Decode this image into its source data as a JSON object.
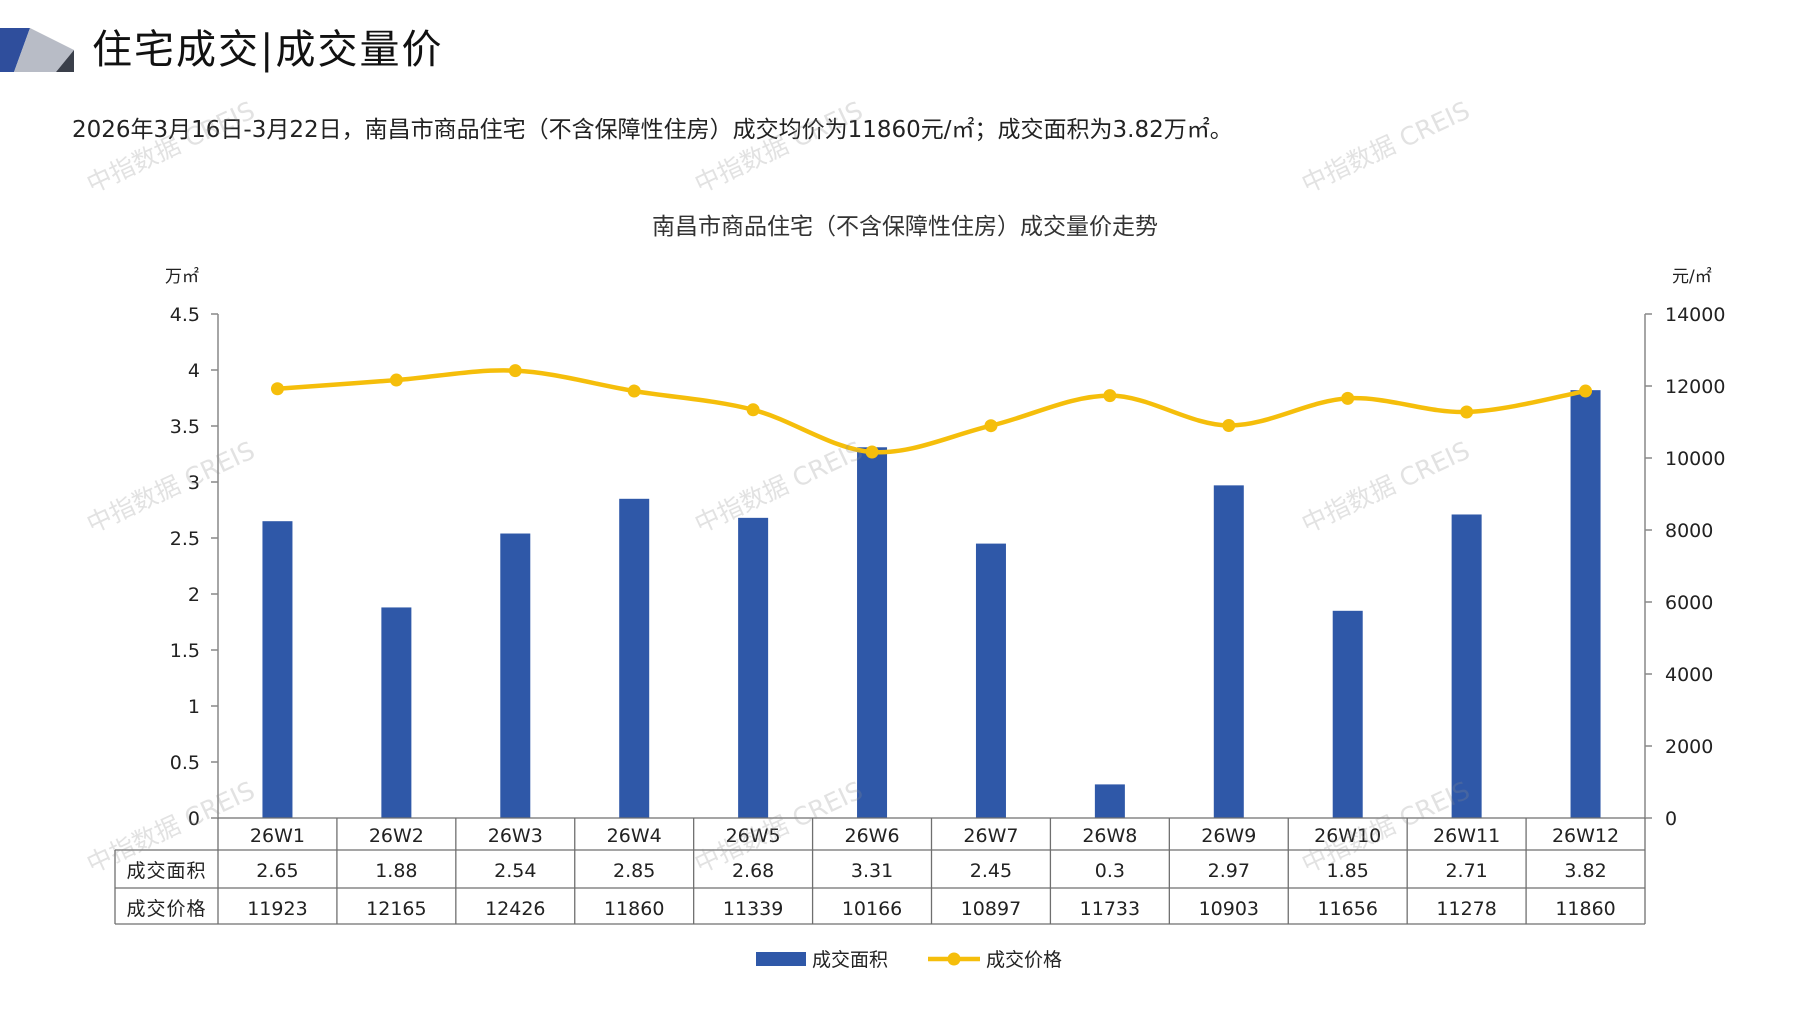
{
  "header": {
    "title": "住宅成交|成交量价",
    "summary": "2026年3月16日-3月22日，南昌市商品住宅（不含保障性住房）成交均价为11860元/㎡；成交面积为3.82万㎡。"
  },
  "watermark": "中指数据 CREIS",
  "colors": {
    "bar": "#2F58A8",
    "line": "#F5BE0B",
    "axis": "#888888",
    "logo_blue": "#2F4E9C",
    "logo_gray": "#B8BCC6"
  },
  "chart_data": {
    "type": "bar",
    "title": "南昌市商品住宅（不含保障性住房）成交量价走势",
    "categories": [
      "26W1",
      "26W2",
      "26W3",
      "26W4",
      "26W5",
      "26W6",
      "26W7",
      "26W8",
      "26W9",
      "26W10",
      "26W11",
      "26W12"
    ],
    "series": [
      {
        "name": "成交面积",
        "type": "bar",
        "axis": "left",
        "values": [
          2.65,
          1.88,
          2.54,
          2.85,
          2.68,
          3.31,
          2.45,
          0.3,
          2.97,
          1.85,
          2.71,
          3.82
        ],
        "table_labels": [
          "2.65",
          "1.88",
          "2.54",
          "2.85",
          "2.68",
          "3.31",
          "2.45",
          "0.3",
          "2.97",
          "1.85",
          "2.71",
          "3.82"
        ]
      },
      {
        "name": "成交价格",
        "type": "line",
        "axis": "right",
        "values": [
          11923,
          12165,
          12426,
          11860,
          11339,
          10166,
          10897,
          11733,
          10903,
          11656,
          11278,
          11860
        ],
        "table_labels": [
          "11923",
          "12165",
          "12426",
          "11860",
          "11339",
          "10166",
          "10897",
          "11733",
          "10903",
          "11656",
          "11278",
          "11860"
        ]
      }
    ],
    "y_left": {
      "unit": "万㎡",
      "range": [
        0,
        4.5
      ],
      "ticks": [
        "0",
        "0.5",
        "1",
        "1.5",
        "2",
        "2.5",
        "3",
        "3.5",
        "4",
        "4.5"
      ]
    },
    "y_right": {
      "unit": "元/㎡",
      "range": [
        0,
        14000
      ],
      "ticks": [
        "0",
        "2000",
        "4000",
        "6000",
        "8000",
        "10000",
        "12000",
        "14000"
      ]
    },
    "grid": false,
    "legend_position": "bottom",
    "data_table": true
  }
}
